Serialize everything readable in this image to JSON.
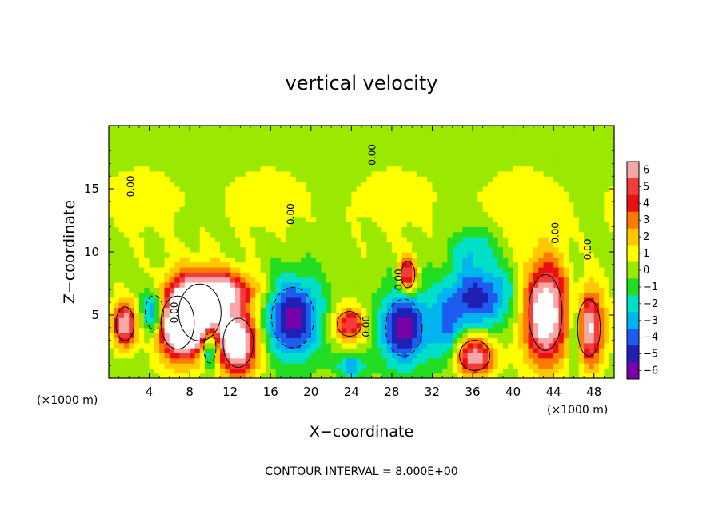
{
  "chart_data": {
    "type": "heatmap",
    "title": "vertical velocity",
    "xlabel": "X−coordinate",
    "ylabel": "Z−coordinate",
    "x_unit_left": "(×1000 m)",
    "x_unit_right": "(×1000 m)",
    "xlim": [
      0,
      50
    ],
    "ylim": [
      0,
      20
    ],
    "xticks": [
      4,
      8,
      12,
      16,
      20,
      24,
      28,
      32,
      36,
      40,
      44,
      48
    ],
    "yticks": [
      5,
      10,
      15
    ],
    "footer": "CONTOUR INTERVAL = 8.000E+00",
    "colorbar": {
      "levels": [
        "6",
        "5",
        "4",
        "3",
        "2",
        "1",
        "0",
        "−1",
        "−2",
        "−3",
        "−4",
        "−5",
        "−6"
      ],
      "colors": [
        "#f7a7a7",
        "#f23c3c",
        "#ea1010",
        "#ff7a00",
        "#ffc800",
        "#ffff00",
        "#9be800",
        "#22dd22",
        "#00e0c8",
        "#00b4f0",
        "#1e5cf0",
        "#2020b4",
        "#7a00aa"
      ]
    },
    "contour_labels": [
      {
        "text": "0.00",
        "x": 2.5,
        "y": 15.2
      },
      {
        "text": "0.00",
        "x": 18.3,
        "y": 13.0
      },
      {
        "text": "0.00",
        "x": 26.4,
        "y": 17.7
      },
      {
        "text": "0.00",
        "x": 6.8,
        "y": 5.2
      },
      {
        "text": "0.00",
        "x": 25.8,
        "y": 4.1
      },
      {
        "text": "0.00",
        "x": 29.0,
        "y": 7.8
      },
      {
        "text": "0.00",
        "x": 44.5,
        "y": 11.5
      },
      {
        "text": "0.00",
        "x": 47.7,
        "y": 10.2
      }
    ],
    "features": [
      {
        "kind": "updraft",
        "cx": 1.6,
        "cz": 4.3,
        "rx": 1.2,
        "rz": 1.8,
        "value": 6.5
      },
      {
        "kind": "updraft",
        "cx": 6.8,
        "cz": 4.4,
        "rx": 2.2,
        "rz": 2.8,
        "value": 8
      },
      {
        "kind": "updraft",
        "cx": 9.0,
        "cz": 5.2,
        "rx": 2.8,
        "rz": 3.0,
        "value": 7.5
      },
      {
        "kind": "updraft",
        "cx": 12.8,
        "cz": 2.8,
        "rx": 2.0,
        "rz": 2.6,
        "value": 8
      },
      {
        "kind": "updraft",
        "cx": 11.5,
        "cz": 7.0,
        "rx": 3.5,
        "rz": 1.5,
        "value": 5
      },
      {
        "kind": "updraft",
        "cx": 23.8,
        "cz": 4.3,
        "rx": 1.6,
        "rz": 1.3,
        "value": 5.5
      },
      {
        "kind": "updraft",
        "cx": 29.6,
        "cz": 8.2,
        "rx": 0.9,
        "rz": 1.4,
        "value": 6
      },
      {
        "kind": "updraft",
        "cx": 36.2,
        "cz": 1.8,
        "rx": 2.0,
        "rz": 1.6,
        "value": 6.5
      },
      {
        "kind": "updraft",
        "cx": 43.2,
        "cz": 5.2,
        "rx": 2.2,
        "rz": 4.0,
        "value": 8.5
      },
      {
        "kind": "updraft",
        "cx": 47.5,
        "cz": 4.0,
        "rx": 1.5,
        "rz": 3.0,
        "value": 7
      },
      {
        "kind": "downdraft",
        "cx": 4.5,
        "cz": 5.2,
        "rx": 1.2,
        "rz": 1.8,
        "value": -5.5
      },
      {
        "kind": "downdraft",
        "cx": 10.0,
        "cz": 2.4,
        "rx": 0.8,
        "rz": 1.6,
        "value": -6
      },
      {
        "kind": "downdraft",
        "cx": 18.2,
        "cz": 4.8,
        "rx": 2.8,
        "rz": 3.2,
        "value": -6
      },
      {
        "kind": "downdraft",
        "cx": 29.2,
        "cz": 4.0,
        "rx": 2.4,
        "rz": 3.0,
        "value": -6
      },
      {
        "kind": "downdraft",
        "cx": 36.5,
        "cz": 6.5,
        "rx": 3.5,
        "rz": 2.5,
        "value": -5
      },
      {
        "kind": "downdraft",
        "cx": 36.0,
        "cz": 10.5,
        "rx": 2.0,
        "rz": 1.5,
        "value": -2.5
      },
      {
        "kind": "downdraft",
        "cx": 46.2,
        "cz": 4.0,
        "rx": 0.8,
        "rz": 3.0,
        "value": -4.5
      },
      {
        "kind": "downdraft",
        "cx": 24.0,
        "cz": 1.0,
        "rx": 1.5,
        "rz": 1.0,
        "value": -3
      },
      {
        "kind": "downdraft",
        "cx": 33.5,
        "cz": 3.5,
        "rx": 1.5,
        "rz": 2.5,
        "value": -3
      }
    ]
  }
}
